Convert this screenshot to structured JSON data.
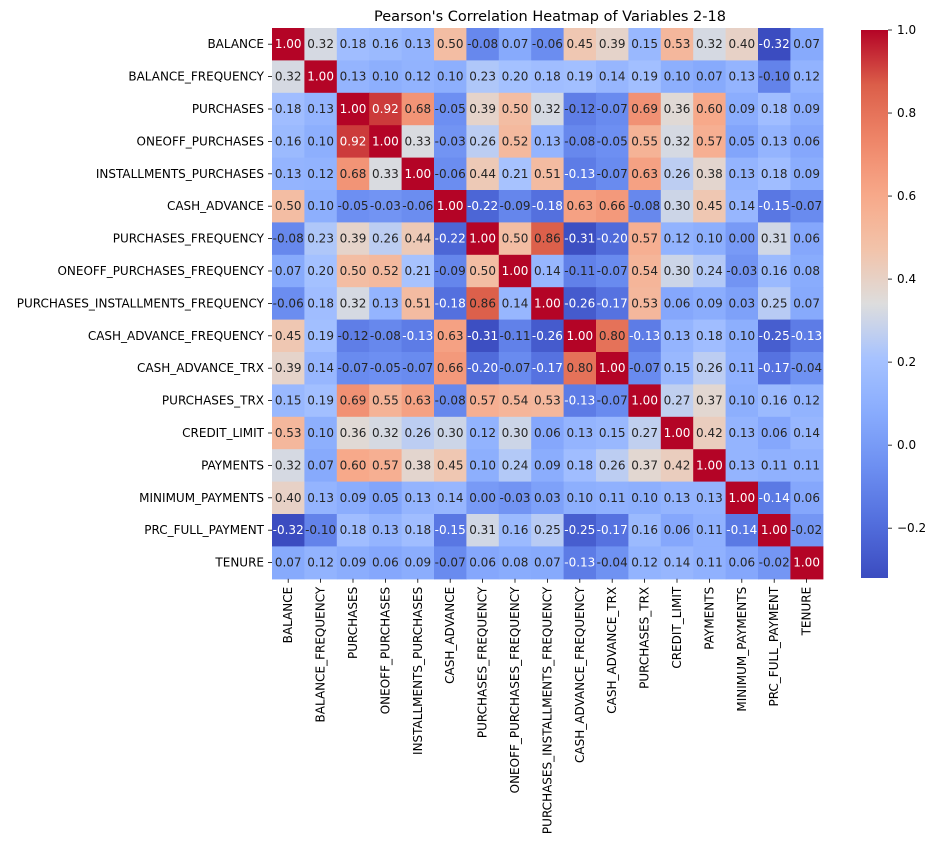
{
  "chart_data": {
    "type": "heatmap",
    "title": "Pearson's Correlation Heatmap of Variables 2-18",
    "xlabel": "",
    "ylabel": "",
    "colormap": "coolwarm",
    "annot_format": "0.00",
    "labels": [
      "BALANCE",
      "BALANCE_FREQUENCY",
      "PURCHASES",
      "ONEOFF_PURCHASES",
      "INSTALLMENTS_PURCHASES",
      "CASH_ADVANCE",
      "PURCHASES_FREQUENCY",
      "ONEOFF_PURCHASES_FREQUENCY",
      "PURCHASES_INSTALLMENTS_FREQUENCY",
      "CASH_ADVANCE_FREQUENCY",
      "CASH_ADVANCE_TRX",
      "PURCHASES_TRX",
      "CREDIT_LIMIT",
      "PAYMENTS",
      "MINIMUM_PAYMENTS",
      "PRC_FULL_PAYMENT",
      "TENURE"
    ],
    "matrix": [
      [
        1.0,
        0.32,
        0.18,
        0.16,
        0.13,
        0.5,
        -0.08,
        0.07,
        -0.06,
        0.45,
        0.39,
        0.15,
        0.53,
        0.32,
        0.4,
        -0.32,
        0.07
      ],
      [
        0.32,
        1.0,
        0.13,
        0.1,
        0.12,
        0.1,
        0.23,
        0.2,
        0.18,
        0.19,
        0.14,
        0.19,
        0.1,
        0.07,
        0.13,
        -0.1,
        0.12
      ],
      [
        0.18,
        0.13,
        1.0,
        0.92,
        0.68,
        -0.05,
        0.39,
        0.5,
        0.32,
        -0.12,
        -0.07,
        0.69,
        0.36,
        0.6,
        0.09,
        0.18,
        0.09
      ],
      [
        0.16,
        0.1,
        0.92,
        1.0,
        0.33,
        -0.03,
        0.26,
        0.52,
        0.13,
        -0.08,
        -0.05,
        0.55,
        0.32,
        0.57,
        0.05,
        0.13,
        0.06
      ],
      [
        0.13,
        0.12,
        0.68,
        0.33,
        1.0,
        -0.06,
        0.44,
        0.21,
        0.51,
        -0.13,
        -0.07,
        0.63,
        0.26,
        0.38,
        0.13,
        0.18,
        0.09
      ],
      [
        0.5,
        0.1,
        -0.05,
        -0.03,
        -0.06,
        1.0,
        -0.22,
        -0.09,
        -0.18,
        0.63,
        0.66,
        -0.08,
        0.3,
        0.45,
        0.14,
        -0.15,
        -0.07
      ],
      [
        -0.08,
        0.23,
        0.39,
        0.26,
        0.44,
        -0.22,
        1.0,
        0.5,
        0.86,
        -0.31,
        -0.2,
        0.57,
        0.12,
        0.1,
        0.0,
        0.31,
        0.06
      ],
      [
        0.07,
        0.2,
        0.5,
        0.52,
        0.21,
        -0.09,
        0.5,
        1.0,
        0.14,
        -0.11,
        -0.07,
        0.54,
        0.3,
        0.24,
        -0.03,
        0.16,
        0.08
      ],
      [
        -0.06,
        0.18,
        0.32,
        0.13,
        0.51,
        -0.18,
        0.86,
        0.14,
        1.0,
        -0.26,
        -0.17,
        0.53,
        0.06,
        0.09,
        0.03,
        0.25,
        0.07
      ],
      [
        0.45,
        0.19,
        -0.12,
        -0.08,
        -0.13,
        0.63,
        -0.31,
        -0.11,
        -0.26,
        1.0,
        0.8,
        -0.13,
        0.13,
        0.18,
        0.1,
        -0.25,
        -0.13
      ],
      [
        0.39,
        0.14,
        -0.07,
        -0.05,
        -0.07,
        0.66,
        -0.2,
        -0.07,
        -0.17,
        0.8,
        1.0,
        -0.07,
        0.15,
        0.26,
        0.11,
        -0.17,
        -0.04
      ],
      [
        0.15,
        0.19,
        0.69,
        0.55,
        0.63,
        -0.08,
        0.57,
        0.54,
        0.53,
        -0.13,
        -0.07,
        1.0,
        0.27,
        0.37,
        0.1,
        0.16,
        0.12
      ],
      [
        0.53,
        0.1,
        0.36,
        0.32,
        0.26,
        0.3,
        0.12,
        0.3,
        0.06,
        0.13,
        0.15,
        0.27,
        1.0,
        0.42,
        0.13,
        0.06,
        0.14
      ],
      [
        0.32,
        0.07,
        0.6,
        0.57,
        0.38,
        0.45,
        0.1,
        0.24,
        0.09,
        0.18,
        0.26,
        0.37,
        0.42,
        1.0,
        0.13,
        0.11,
        0.11
      ],
      [
        0.4,
        0.13,
        0.09,
        0.05,
        0.13,
        0.14,
        0.0,
        -0.03,
        0.03,
        0.1,
        0.11,
        0.1,
        0.13,
        0.13,
        1.0,
        -0.14,
        0.06
      ],
      [
        -0.32,
        -0.1,
        0.18,
        0.13,
        0.18,
        -0.15,
        0.31,
        0.16,
        0.25,
        -0.25,
        -0.17,
        0.16,
        0.06,
        0.11,
        -0.14,
        1.0,
        -0.02
      ],
      [
        0.07,
        0.12,
        0.09,
        0.06,
        0.09,
        -0.07,
        0.06,
        0.08,
        0.07,
        -0.13,
        -0.04,
        0.12,
        0.14,
        0.11,
        0.06,
        -0.02,
        1.0
      ]
    ],
    "vmin": -0.32,
    "vmax": 1.0,
    "colorbar_ticks": [
      -0.2,
      0.0,
      0.2,
      0.4,
      0.6,
      0.8,
      1.0
    ],
    "colorbar_tick_labels": [
      "−0.2",
      "0.0",
      "0.2",
      "0.4",
      "0.6",
      "0.8",
      "1.0"
    ]
  }
}
